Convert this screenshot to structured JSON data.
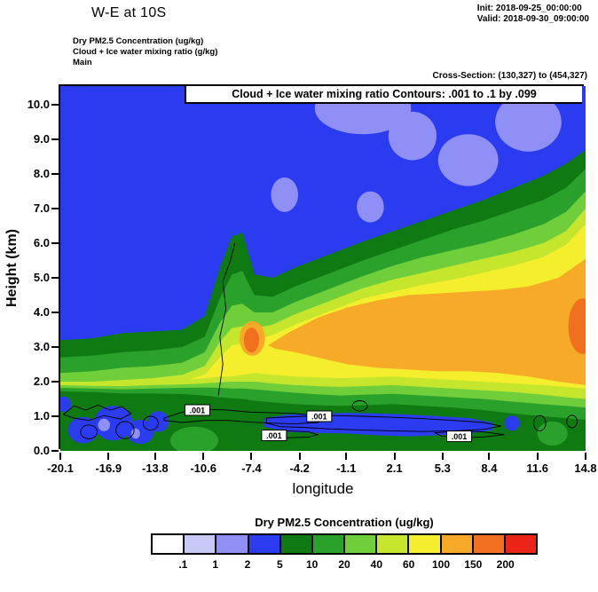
{
  "header": {
    "title": "W-E at 10S",
    "init_label": "Init: 2018-09-25_00:00:00",
    "valid_label": "Valid: 2018-09-30_09:00:00",
    "field1": "Dry PM2.5 Concentration   (ug/kg)",
    "field2": "Cloud + Ice water mixing ratio   (g/kg)",
    "field3": "Main",
    "cross_section": "Cross-Section: (130,327) to (454,327)"
  },
  "chart_data": {
    "type": "filled_contour_cross_section",
    "inner_title": "Cloud + Ice water mixing ratio Contours: .001 to .1 by .099",
    "xlabel": "longitude",
    "ylabel": "Height (km)",
    "xlim": [
      -20.1,
      14.8
    ],
    "ylim": [
      0,
      10.54
    ],
    "x_ticks": [
      "-20.1",
      "-16.9",
      "-13.8",
      "-10.6",
      "-7.4",
      "-4.2",
      "-1.1",
      "2.1",
      "5.3",
      "8.4",
      "11.6",
      "14.8"
    ],
    "y_ticks": [
      "0.0",
      "1.0",
      "2.0",
      "3.0",
      "4.0",
      "5.0",
      "6.0",
      "7.0",
      "8.0",
      "9.0",
      "10.0"
    ],
    "background_color_index": 3,
    "colorbar": {
      "title": "Dry PM2.5 Concentration  (ug/kg)",
      "boundary_labels": [
        ".1",
        "1",
        "2",
        "5",
        "10",
        "20",
        "40",
        "60",
        "100",
        "150",
        "200"
      ],
      "colors": [
        "#ffffff",
        "#c8c8fa",
        "#8f8ff5",
        "#2b3cf0",
        "#0f7a12",
        "#2aa12a",
        "#6fce3a",
        "#c6e62e",
        "#f4ee2c",
        "#f7a928",
        "#f07020",
        "#ec2417"
      ]
    },
    "band_x": [
      -20.1,
      -18,
      -16,
      -14,
      -12,
      -10.5,
      -9.5,
      -8.7,
      -8,
      -7.2,
      -6,
      -4.5,
      -3,
      -1.5,
      0,
      2,
      4,
      6,
      8,
      10,
      12,
      13.5,
      14.8
    ],
    "fill_layers": [
      {
        "kind": "blob",
        "name": "low-pm-patch",
        "color": 2,
        "cx": 0,
        "cy": 9.9,
        "rx": 3.2,
        "ry": 0.75
      },
      {
        "kind": "blob",
        "name": "low-pm-patch",
        "color": 2,
        "cx": 3.3,
        "cy": 9.1,
        "rx": 1.6,
        "ry": 0.7
      },
      {
        "kind": "blob",
        "name": "low-pm-patch",
        "color": 2,
        "cx": 7,
        "cy": 8.4,
        "rx": 2.0,
        "ry": 0.75
      },
      {
        "kind": "blob",
        "name": "low-pm-patch",
        "color": 2,
        "cx": 11,
        "cy": 9.5,
        "rx": 2.2,
        "ry": 0.85
      },
      {
        "kind": "blob",
        "name": "low-pm-patch",
        "color": 2,
        "cx": -5.2,
        "cy": 7.4,
        "rx": 0.9,
        "ry": 0.5
      },
      {
        "kind": "blob",
        "name": "low-pm-patch",
        "color": 2,
        "cx": 0.5,
        "cy": 7.05,
        "rx": 0.9,
        "ry": 0.45
      },
      {
        "kind": "blob",
        "name": "low-pm-patch",
        "color": 2,
        "cx": 13.6,
        "cy": 7.7,
        "rx": 0.9,
        "ry": 0.45
      },
      {
        "kind": "band",
        "name": "band-ge-5",
        "color": 4,
        "tops": [
          3.2,
          3.25,
          3.4,
          3.45,
          3.5,
          3.9,
          5.3,
          6.2,
          6.3,
          5.1,
          5.0,
          5.3,
          5.55,
          5.8,
          6.05,
          6.35,
          6.65,
          6.95,
          7.25,
          7.6,
          7.95,
          8.3,
          8.7
        ]
      },
      {
        "kind": "band",
        "name": "band-ge-10",
        "color": 5,
        "tops": [
          2.7,
          2.75,
          2.85,
          2.9,
          3.0,
          3.3,
          4.4,
          5.1,
          5.2,
          4.5,
          4.45,
          4.75,
          5.0,
          5.25,
          5.5,
          5.8,
          6.1,
          6.4,
          6.65,
          6.95,
          7.25,
          7.6,
          8.15
        ]
      },
      {
        "kind": "band",
        "name": "band-ge-20",
        "color": 6,
        "tops": [
          2.25,
          2.3,
          2.4,
          2.45,
          2.55,
          2.85,
          3.7,
          4.2,
          4.25,
          4.0,
          4.0,
          4.3,
          4.55,
          4.8,
          5.05,
          5.35,
          5.6,
          5.8,
          6.0,
          6.25,
          6.55,
          6.9,
          7.5
        ]
      },
      {
        "kind": "band",
        "name": "band-ge-40",
        "color": 7,
        "tops": [
          1.95,
          2.0,
          2.05,
          2.1,
          2.2,
          2.45,
          3.15,
          3.55,
          3.6,
          3.55,
          3.65,
          3.95,
          4.2,
          4.45,
          4.7,
          4.95,
          5.15,
          5.35,
          5.55,
          5.75,
          6.0,
          6.35,
          7.0
        ]
      },
      {
        "kind": "band",
        "name": "band-ge-60",
        "color": 8,
        "tops": [
          1.8,
          1.85,
          1.9,
          1.95,
          2.0,
          2.2,
          2.7,
          3.05,
          3.1,
          3.2,
          3.35,
          3.65,
          3.9,
          4.15,
          4.4,
          4.6,
          4.8,
          4.95,
          5.15,
          5.35,
          5.6,
          5.95,
          6.55
        ]
      },
      {
        "kind": "polygon",
        "name": "band-ge-100-core",
        "color": 9,
        "points": [
          [
            -6.3,
            3.05
          ],
          [
            -5,
            3.4
          ],
          [
            -3,
            3.85
          ],
          [
            -1,
            4.15
          ],
          [
            1,
            4.35
          ],
          [
            3,
            4.5
          ],
          [
            5,
            4.55
          ],
          [
            7,
            4.6
          ],
          [
            9,
            4.65
          ],
          [
            11,
            4.75
          ],
          [
            13,
            5.0
          ],
          [
            14.8,
            5.55
          ],
          [
            14.8,
            1.9
          ],
          [
            13,
            2.0
          ],
          [
            11,
            2.15
          ],
          [
            9,
            2.25
          ],
          [
            7,
            2.3
          ],
          [
            5,
            2.3
          ],
          [
            3,
            2.35
          ],
          [
            1,
            2.4
          ],
          [
            -1,
            2.5
          ],
          [
            -3,
            2.7
          ],
          [
            -4.5,
            2.85
          ],
          [
            -5.8,
            2.95
          ]
        ]
      },
      {
        "kind": "blob",
        "name": "orange-patch",
        "color": 9,
        "cx": -7.35,
        "cy": 3.25,
        "rx": 0.85,
        "ry": 0.5
      },
      {
        "kind": "blob",
        "name": "hot-spot",
        "color": 10,
        "cx": -7.4,
        "cy": 3.2,
        "rx": 0.5,
        "ry": 0.36
      },
      {
        "kind": "blob",
        "name": "hot-spot",
        "color": 10,
        "cx": 14.6,
        "cy": 3.6,
        "rx": 0.95,
        "ry": 0.8
      },
      {
        "kind": "band",
        "name": "surface-band-40-60",
        "color": 7,
        "tops": [
          2.0,
          2.0,
          2.0,
          2.02,
          2.05,
          2.1,
          2.15,
          2.15,
          2.2,
          2.25,
          2.2,
          2.15,
          2.12,
          2.1,
          2.12,
          2.15,
          2.1,
          2.05,
          2.0,
          1.95,
          1.9,
          1.85,
          1.8
        ]
      },
      {
        "kind": "band",
        "name": "surface-band-20-40",
        "color": 6,
        "tops": [
          1.9,
          1.88,
          1.87,
          1.9,
          1.92,
          1.95,
          1.98,
          2.0,
          2.0,
          2.0,
          1.95,
          1.9,
          1.87,
          1.85,
          1.87,
          1.9,
          1.85,
          1.8,
          1.75,
          1.7,
          1.62,
          1.55,
          1.5
        ]
      },
      {
        "kind": "band",
        "name": "surface-band-10-20",
        "color": 5,
        "tops": [
          1.82,
          1.8,
          1.78,
          1.8,
          1.82,
          1.83,
          1.82,
          1.8,
          1.8,
          1.78,
          1.73,
          1.68,
          1.63,
          1.6,
          1.62,
          1.65,
          1.6,
          1.55,
          1.5,
          1.42,
          1.35,
          1.3,
          1.25
        ]
      },
      {
        "kind": "band",
        "name": "surface-band-5-10",
        "color": 4,
        "tops": [
          1.72,
          1.7,
          1.66,
          1.66,
          1.64,
          1.6,
          1.55,
          1.52,
          1.5,
          1.45,
          1.4,
          1.35,
          1.32,
          1.3,
          1.32,
          1.35,
          1.3,
          1.25,
          1.18,
          1.08,
          1.0,
          0.95,
          0.9
        ]
      },
      {
        "kind": "blob",
        "name": "surface-green-patch",
        "color": 5,
        "cx": -11.2,
        "cy": 0.3,
        "rx": 1.6,
        "ry": 0.4
      },
      {
        "kind": "blob",
        "name": "surface-green-patch",
        "color": 5,
        "cx": 12.6,
        "cy": 0.5,
        "rx": 1.0,
        "ry": 0.35
      },
      {
        "kind": "blob",
        "name": "surface-blue-blob",
        "color": 3,
        "cx": -18.6,
        "cy": 0.6,
        "rx": 1.0,
        "ry": 0.38
      },
      {
        "kind": "blob",
        "name": "surface-blue-blob",
        "color": 3,
        "cx": -16.6,
        "cy": 0.8,
        "rx": 1.3,
        "ry": 0.5
      },
      {
        "kind": "blob",
        "name": "surface-blue-blob",
        "color": 3,
        "cx": -14.8,
        "cy": 0.55,
        "rx": 0.9,
        "ry": 0.35
      },
      {
        "kind": "blob",
        "name": "surface-blue-blob",
        "color": 3,
        "cx": -13.6,
        "cy": 0.85,
        "rx": 0.7,
        "ry": 0.3
      },
      {
        "kind": "blob",
        "name": "surface-blue-blob",
        "color": 3,
        "cx": -19.9,
        "cy": 1.35,
        "rx": 0.5,
        "ry": 0.22
      },
      {
        "kind": "polygon",
        "name": "surface-blue-streak",
        "color": 3,
        "points": [
          [
            -6.6,
            0.95
          ],
          [
            -5,
            1.05
          ],
          [
            -3,
            1.08
          ],
          [
            -1,
            1.1
          ],
          [
            1,
            1.08
          ],
          [
            3,
            1.05
          ],
          [
            5,
            1.0
          ],
          [
            7,
            0.95
          ],
          [
            8.6,
            0.82
          ],
          [
            8.6,
            0.6
          ],
          [
            7,
            0.5
          ],
          [
            5,
            0.45
          ],
          [
            3,
            0.42
          ],
          [
            1,
            0.45
          ],
          [
            -1,
            0.5
          ],
          [
            -3,
            0.52
          ],
          [
            -5,
            0.55
          ],
          [
            -6.6,
            0.7
          ]
        ]
      },
      {
        "kind": "blob",
        "name": "surface-blue-blob",
        "color": 3,
        "cx": 9.9,
        "cy": 0.8,
        "rx": 0.5,
        "ry": 0.22
      },
      {
        "kind": "blob",
        "name": "surface-periwinkle-dot",
        "color": 2,
        "cx": -17.2,
        "cy": 0.75,
        "rx": 0.4,
        "ry": 0.18
      },
      {
        "kind": "blob",
        "name": "surface-periwinkle-dot",
        "color": 2,
        "cx": -15.1,
        "cy": 0.5,
        "rx": 0.3,
        "ry": 0.15
      }
    ],
    "cloud_contours": [
      {
        "kind": "loop",
        "points": [
          [
            -13.2,
            0.95
          ],
          [
            -12,
            1.12
          ],
          [
            -10.5,
            1.2
          ],
          [
            -9,
            1.18
          ],
          [
            -7.5,
            1.12
          ],
          [
            -6,
            1.1
          ],
          [
            -4.5,
            1.08
          ],
          [
            -3,
            1.02
          ],
          [
            -2.4,
            0.92
          ],
          [
            -3,
            0.82
          ],
          [
            -4.5,
            0.78
          ],
          [
            -6,
            0.8
          ],
          [
            -7.5,
            0.83
          ],
          [
            -9,
            0.88
          ],
          [
            -10.5,
            0.88
          ],
          [
            -12,
            0.82
          ],
          [
            -13.2,
            0.88
          ]
        ]
      },
      {
        "kind": "loop",
        "points": [
          [
            -6.4,
            0.95
          ],
          [
            -4,
            1.0
          ],
          [
            -2,
            1.02
          ],
          [
            0,
            1.0
          ],
          [
            2,
            0.97
          ],
          [
            4,
            0.93
          ],
          [
            6,
            0.88
          ],
          [
            8,
            0.82
          ],
          [
            9.2,
            0.72
          ],
          [
            8,
            0.62
          ],
          [
            6,
            0.58
          ],
          [
            4,
            0.56
          ],
          [
            2,
            0.58
          ],
          [
            0,
            0.6
          ],
          [
            -2,
            0.63
          ],
          [
            -4,
            0.68
          ],
          [
            -5.5,
            0.7
          ],
          [
            -6.4,
            0.8
          ]
        ]
      },
      {
        "kind": "loop",
        "points": [
          [
            -6.4,
            0.52
          ],
          [
            -5,
            0.58
          ],
          [
            -3.6,
            0.55
          ],
          [
            -3.0,
            0.47
          ],
          [
            -3.6,
            0.4
          ],
          [
            -5,
            0.38
          ],
          [
            -6.1,
            0.43
          ]
        ]
      },
      {
        "kind": "loop",
        "points": [
          [
            4.8,
            0.52
          ],
          [
            6.5,
            0.58
          ],
          [
            8,
            0.55
          ],
          [
            9.4,
            0.47
          ],
          [
            8,
            0.4
          ],
          [
            6.5,
            0.38
          ],
          [
            5.2,
            0.43
          ]
        ]
      },
      {
        "kind": "loop",
        "points": [
          [
            -19.9,
            1.05
          ],
          [
            -19.2,
            1.3
          ],
          [
            -18.4,
            1.18
          ],
          [
            -17.6,
            1.32
          ],
          [
            -16.8,
            1.18
          ],
          [
            -16,
            1.28
          ],
          [
            -15.4,
            1.08
          ],
          [
            -16.1,
            0.92
          ],
          [
            -17.2,
            1.02
          ],
          [
            -18.2,
            0.88
          ],
          [
            -19.2,
            0.95
          ]
        ]
      },
      {
        "kind": "oval",
        "cx": -18.2,
        "cy": 0.55,
        "rx": 0.55,
        "ry": 0.2
      },
      {
        "kind": "oval",
        "cx": -15.8,
        "cy": 0.6,
        "rx": 0.6,
        "ry": 0.25
      },
      {
        "kind": "oval",
        "cx": -14.1,
        "cy": 0.8,
        "rx": 0.5,
        "ry": 0.2
      },
      {
        "kind": "oval",
        "cx": 11.75,
        "cy": 0.8,
        "rx": 0.4,
        "ry": 0.22
      },
      {
        "kind": "oval",
        "cx": 13.9,
        "cy": 0.85,
        "rx": 0.35,
        "ry": 0.18
      },
      {
        "kind": "oval",
        "cx": -0.2,
        "cy": 1.3,
        "rx": 0.5,
        "ry": 0.15
      },
      {
        "kind": "line",
        "points": [
          [
            -9.6,
            1.6
          ],
          [
            -9.3,
            2.5
          ],
          [
            -9.5,
            3.3
          ],
          [
            -9.1,
            4.1
          ],
          [
            -9.3,
            4.9
          ],
          [
            -8.8,
            5.5
          ],
          [
            -8.5,
            6.0
          ]
        ]
      }
    ],
    "contour_labels": [
      {
        "x": -11.0,
        "y": 1.18,
        "text": ".001"
      },
      {
        "x": -2.9,
        "y": 1.0,
        "text": ".001"
      },
      {
        "x": -5.9,
        "y": 0.45,
        "text": ".001"
      },
      {
        "x": 6.4,
        "y": 0.42,
        "text": ".001"
      }
    ]
  }
}
